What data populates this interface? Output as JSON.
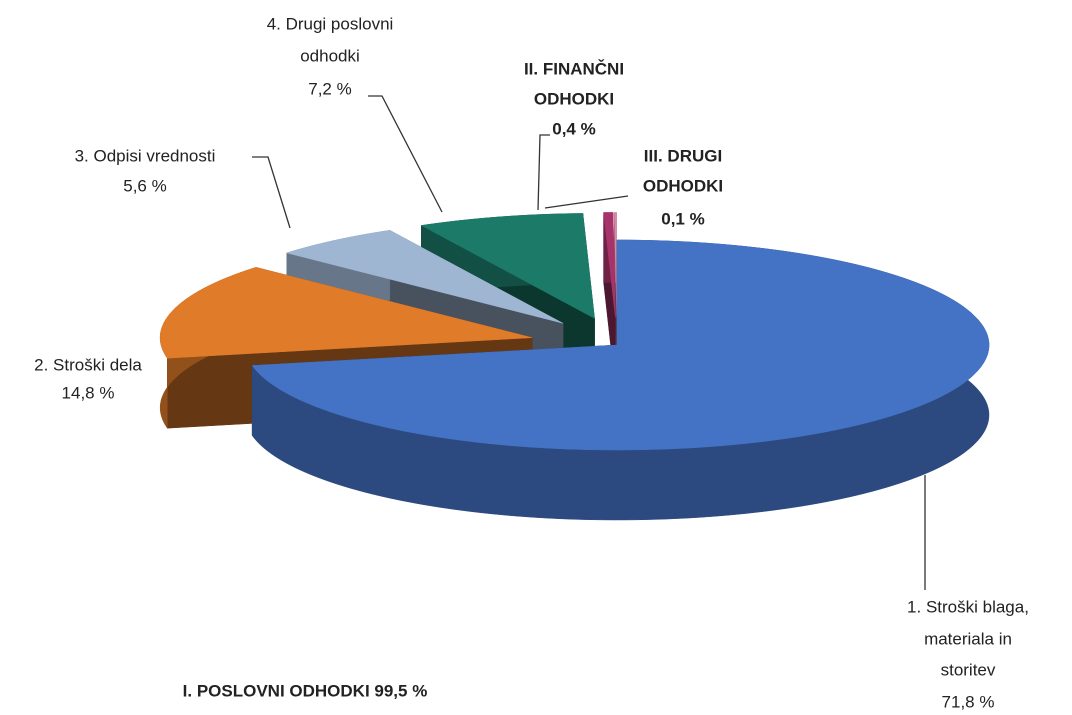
{
  "chart_data": {
    "type": "pie3d",
    "categories": [
      [
        "1. Stroški blaga,",
        "materiala in",
        "storitev"
      ],
      [
        "2. Stroški dela"
      ],
      [
        "3. Odpisi vrednosti"
      ],
      [
        "4. Drugi poslovni",
        "odhodki"
      ],
      [
        "II. FINANČNI",
        "ODHODKI"
      ],
      [
        "III. DRUGI",
        "ODHODKI"
      ]
    ],
    "values": [
      71.8,
      14.8,
      5.6,
      7.2,
      0.4,
      0.1
    ],
    "value_labels": [
      "71,8 %",
      "14,8 %",
      "5,6 %",
      "7,2 %",
      "0,4 %",
      "0,1 %"
    ],
    "colors": [
      "#4472c4",
      "#e07b2a",
      "#9fb6d3",
      "#1b7a68",
      "#a8336a",
      "#d98aa8"
    ],
    "label_bold": [
      false,
      false,
      false,
      false,
      true,
      true
    ],
    "annotation": "I. POSLOVNI ODHODKI 99,5 %"
  }
}
